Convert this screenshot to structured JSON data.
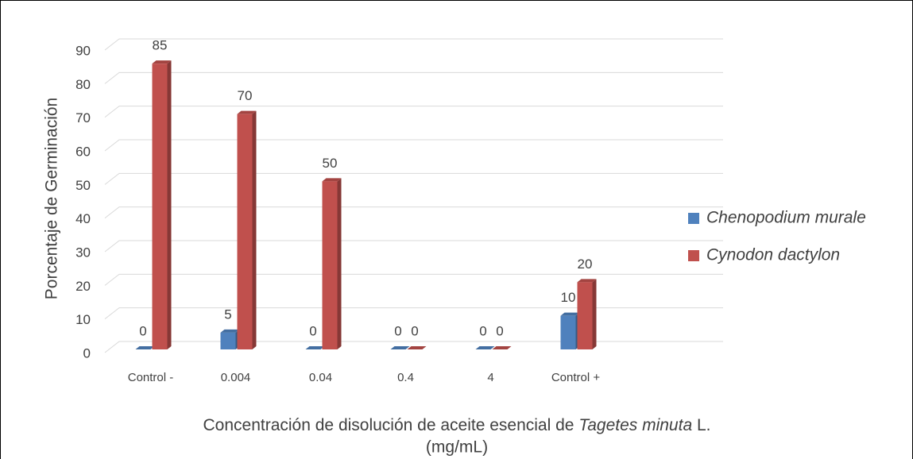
{
  "chart_data": {
    "type": "bar",
    "ylabel": "Porcentaje de Germinación",
    "xlabel": [
      "Concentración de disolución de aceite esencial de ",
      "Tagetes minuta",
      " L.",
      "(mg/mL)"
    ],
    "categories": [
      "Control -",
      "0.004",
      "0.04",
      "0.4",
      "4",
      "Control +"
    ],
    "series": [
      {
        "name": "Chenopodium murale",
        "color": "#4f81bd",
        "values": [
          0,
          5,
          0,
          0,
          0,
          10
        ]
      },
      {
        "name": "Cynodon dactylon",
        "color": "#c0504d",
        "values": [
          85,
          70,
          50,
          0,
          0,
          20
        ]
      }
    ],
    "ylim": [
      0,
      90
    ],
    "yticks": [
      0,
      10,
      20,
      30,
      40,
      50,
      60,
      70,
      80,
      90
    ],
    "grid": true,
    "legend": "right"
  }
}
